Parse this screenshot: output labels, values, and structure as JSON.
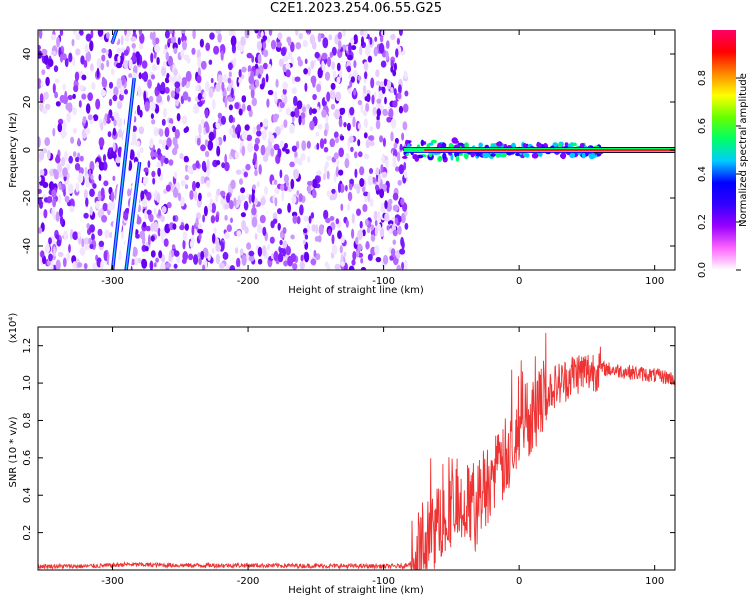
{
  "figure_title": "C2E1.2023.254.06.55.G25",
  "colorbar": {
    "label": "Normalized spectral amplitude",
    "ticks": [
      "0.0",
      "0.2",
      "0.4",
      "0.6",
      "0.8"
    ],
    "tick_values": [
      0.0,
      0.2,
      0.4,
      0.6,
      0.8
    ],
    "range": [
      0,
      1
    ],
    "colormap": [
      "#ffffff",
      "#ff66ff",
      "#9900ff",
      "#3300ff",
      "#0000ff",
      "#00ccff",
      "#00ff66",
      "#66ff00",
      "#ffff00",
      "#ff8800",
      "#ff0000",
      "#ff0066"
    ]
  },
  "chart_data": [
    {
      "type": "heatmap",
      "title": "",
      "xlabel": "Height of straight line (km)",
      "ylabel": "Frequency (Hz)",
      "xlim": [
        -355,
        115
      ],
      "ylim": [
        -50,
        50
      ],
      "x_ticks": [
        -300,
        -200,
        -100,
        0,
        100
      ],
      "x_tick_labels": [
        "-300",
        "-200",
        "-100",
        "0",
        "100"
      ],
      "y_ticks": [
        -40,
        -20,
        0,
        20,
        40
      ],
      "y_tick_labels": [
        "-40",
        "-20",
        "0",
        "20",
        "40"
      ],
      "noise_region_x": [
        -355,
        -83
      ],
      "signal_line": {
        "y": 0,
        "x_start": -85,
        "x_end": 115
      },
      "aliased_streaks": [
        {
          "x0": -300,
          "y0": -50,
          "x1": -284,
          "y1": 30
        },
        {
          "x0": -290,
          "y0": -50,
          "x1": -280,
          "y1": -5
        },
        {
          "x0": -300,
          "y0": 45,
          "x1": -297,
          "y1": 50
        }
      ]
    },
    {
      "type": "line",
      "title": "",
      "xlabel": "Height of straight line (km)",
      "ylabel": "SNR (10 * v/v)",
      "y_multiplier": "(x10⁴)",
      "xlim": [
        -355,
        115
      ],
      "ylim": [
        0,
        1.3
      ],
      "x_ticks": [
        -300,
        -200,
        -100,
        0,
        100
      ],
      "x_tick_labels": [
        "-300",
        "-200",
        "-100",
        "0",
        "100"
      ],
      "y_ticks": [
        0.2,
        0.4,
        0.6,
        0.8,
        1.0,
        1.2
      ],
      "y_tick_labels": [
        "0.2",
        "0.4",
        "0.6",
        "0.8",
        "1.0",
        "1.2"
      ],
      "series_color": "#ee3333",
      "series": [
        {
          "x": [
            -355,
            -320,
            -300,
            -290,
            -250,
            -200,
            -150,
            -100,
            -85,
            -78,
            -72,
            -65,
            -60,
            -55,
            -50,
            -45,
            -40,
            -35,
            -30,
            -25,
            -20,
            -15,
            -10,
            -5,
            0,
            5,
            10,
            15,
            20,
            25,
            30,
            35,
            40,
            45,
            50,
            55,
            60,
            70,
            80,
            90,
            100,
            110,
            115
          ],
          "values": [
            0.02,
            0.02,
            0.025,
            0.03,
            0.025,
            0.025,
            0.022,
            0.02,
            0.02,
            0.05,
            0.12,
            0.18,
            0.25,
            0.3,
            0.34,
            0.3,
            0.35,
            0.36,
            0.4,
            0.45,
            0.5,
            0.52,
            0.6,
            0.68,
            0.72,
            0.8,
            0.85,
            0.9,
            0.94,
            0.98,
            1.0,
            1.02,
            1.05,
            1.06,
            1.06,
            1.07,
            1.08,
            1.07,
            1.06,
            1.05,
            1.04,
            1.03,
            1.02
          ]
        }
      ]
    }
  ]
}
